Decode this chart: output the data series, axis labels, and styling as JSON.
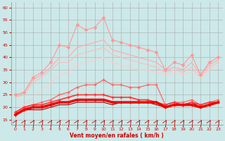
{
  "background_color": "#cce8e8",
  "grid_color": "#aaaaaa",
  "xlabel": "Vent moyen/en rafales ( km/h )",
  "ylabel_ticks": [
    15,
    20,
    25,
    30,
    35,
    40,
    45,
    50,
    55,
    60
  ],
  "x_ticks": [
    0,
    1,
    2,
    3,
    4,
    5,
    6,
    7,
    8,
    9,
    10,
    11,
    12,
    13,
    14,
    15,
    16,
    17,
    18,
    19,
    20,
    21,
    22,
    23
  ],
  "ylim": [
    13,
    62
  ],
  "xlim": [
    -0.5,
    23.5
  ],
  "series": [
    {
      "name": "rafales_top",
      "color": "#ff9999",
      "linewidth": 0.8,
      "marker": "D",
      "markersize": 2.0,
      "y": [
        25,
        26,
        32,
        34,
        38,
        45,
        44,
        53,
        51,
        52,
        56,
        47,
        46,
        45,
        44,
        43,
        42,
        35,
        38,
        37,
        41,
        33,
        38,
        40
      ]
    },
    {
      "name": "rafales_2",
      "color": "#ffaaaa",
      "linewidth": 0.8,
      "marker": null,
      "markersize": 0,
      "y": [
        24,
        26,
        31,
        33,
        36,
        40,
        40,
        44,
        45,
        46,
        47,
        43,
        42,
        41,
        40,
        39,
        38,
        35,
        36,
        35,
        38,
        33,
        37,
        39
      ]
    },
    {
      "name": "rafales_3",
      "color": "#ffbbbb",
      "linewidth": 0.8,
      "marker": null,
      "markersize": 0,
      "y": [
        24,
        25,
        30,
        32,
        35,
        38,
        38,
        41,
        42,
        43,
        44,
        41,
        40,
        39,
        38,
        37,
        36,
        34,
        35,
        34,
        36,
        32,
        36,
        38
      ]
    },
    {
      "name": "rafales_4",
      "color": "#ffcccc",
      "linewidth": 0.8,
      "marker": null,
      "markersize": 0,
      "y": [
        18,
        21,
        24,
        27,
        30,
        33,
        34,
        37,
        38,
        39,
        40,
        38,
        37,
        36,
        35,
        35,
        34,
        33,
        34,
        33,
        34,
        32,
        35,
        37
      ]
    },
    {
      "name": "moyen_top",
      "color": "#ff6666",
      "linewidth": 0.9,
      "marker": "+",
      "markersize": 3.5,
      "y": [
        18,
        20,
        21,
        22,
        23,
        25,
        26,
        28,
        29,
        29,
        31,
        29,
        29,
        28,
        28,
        29,
        29,
        21,
        22,
        22,
        23,
        21,
        22,
        23
      ]
    },
    {
      "name": "moyen_2",
      "color": "#ff3333",
      "linewidth": 1.2,
      "marker": "+",
      "markersize": 3.0,
      "y": [
        18,
        20,
        21,
        21,
        22,
        23,
        24,
        25,
        25,
        25,
        25,
        24,
        24,
        24,
        23,
        23,
        22,
        21,
        22,
        21,
        22,
        21,
        22,
        22
      ]
    },
    {
      "name": "moyen_3",
      "color": "#ee0000",
      "linewidth": 2.5,
      "marker": "+",
      "markersize": 2.5,
      "y": [
        17,
        19,
        20,
        20,
        21,
        22,
        22,
        23,
        23,
        23,
        23,
        22,
        22,
        22,
        22,
        22,
        22,
        20,
        21,
        21,
        21,
        20,
        21,
        22
      ]
    },
    {
      "name": "moyen_bottom",
      "color": "#990000",
      "linewidth": 0.8,
      "marker": null,
      "markersize": 0,
      "y": [
        17,
        19,
        19,
        19,
        20,
        21,
        21,
        22,
        22,
        22,
        22,
        21,
        22,
        22,
        22,
        22,
        21,
        20,
        21,
        21,
        22,
        20,
        21,
        22
      ]
    }
  ]
}
